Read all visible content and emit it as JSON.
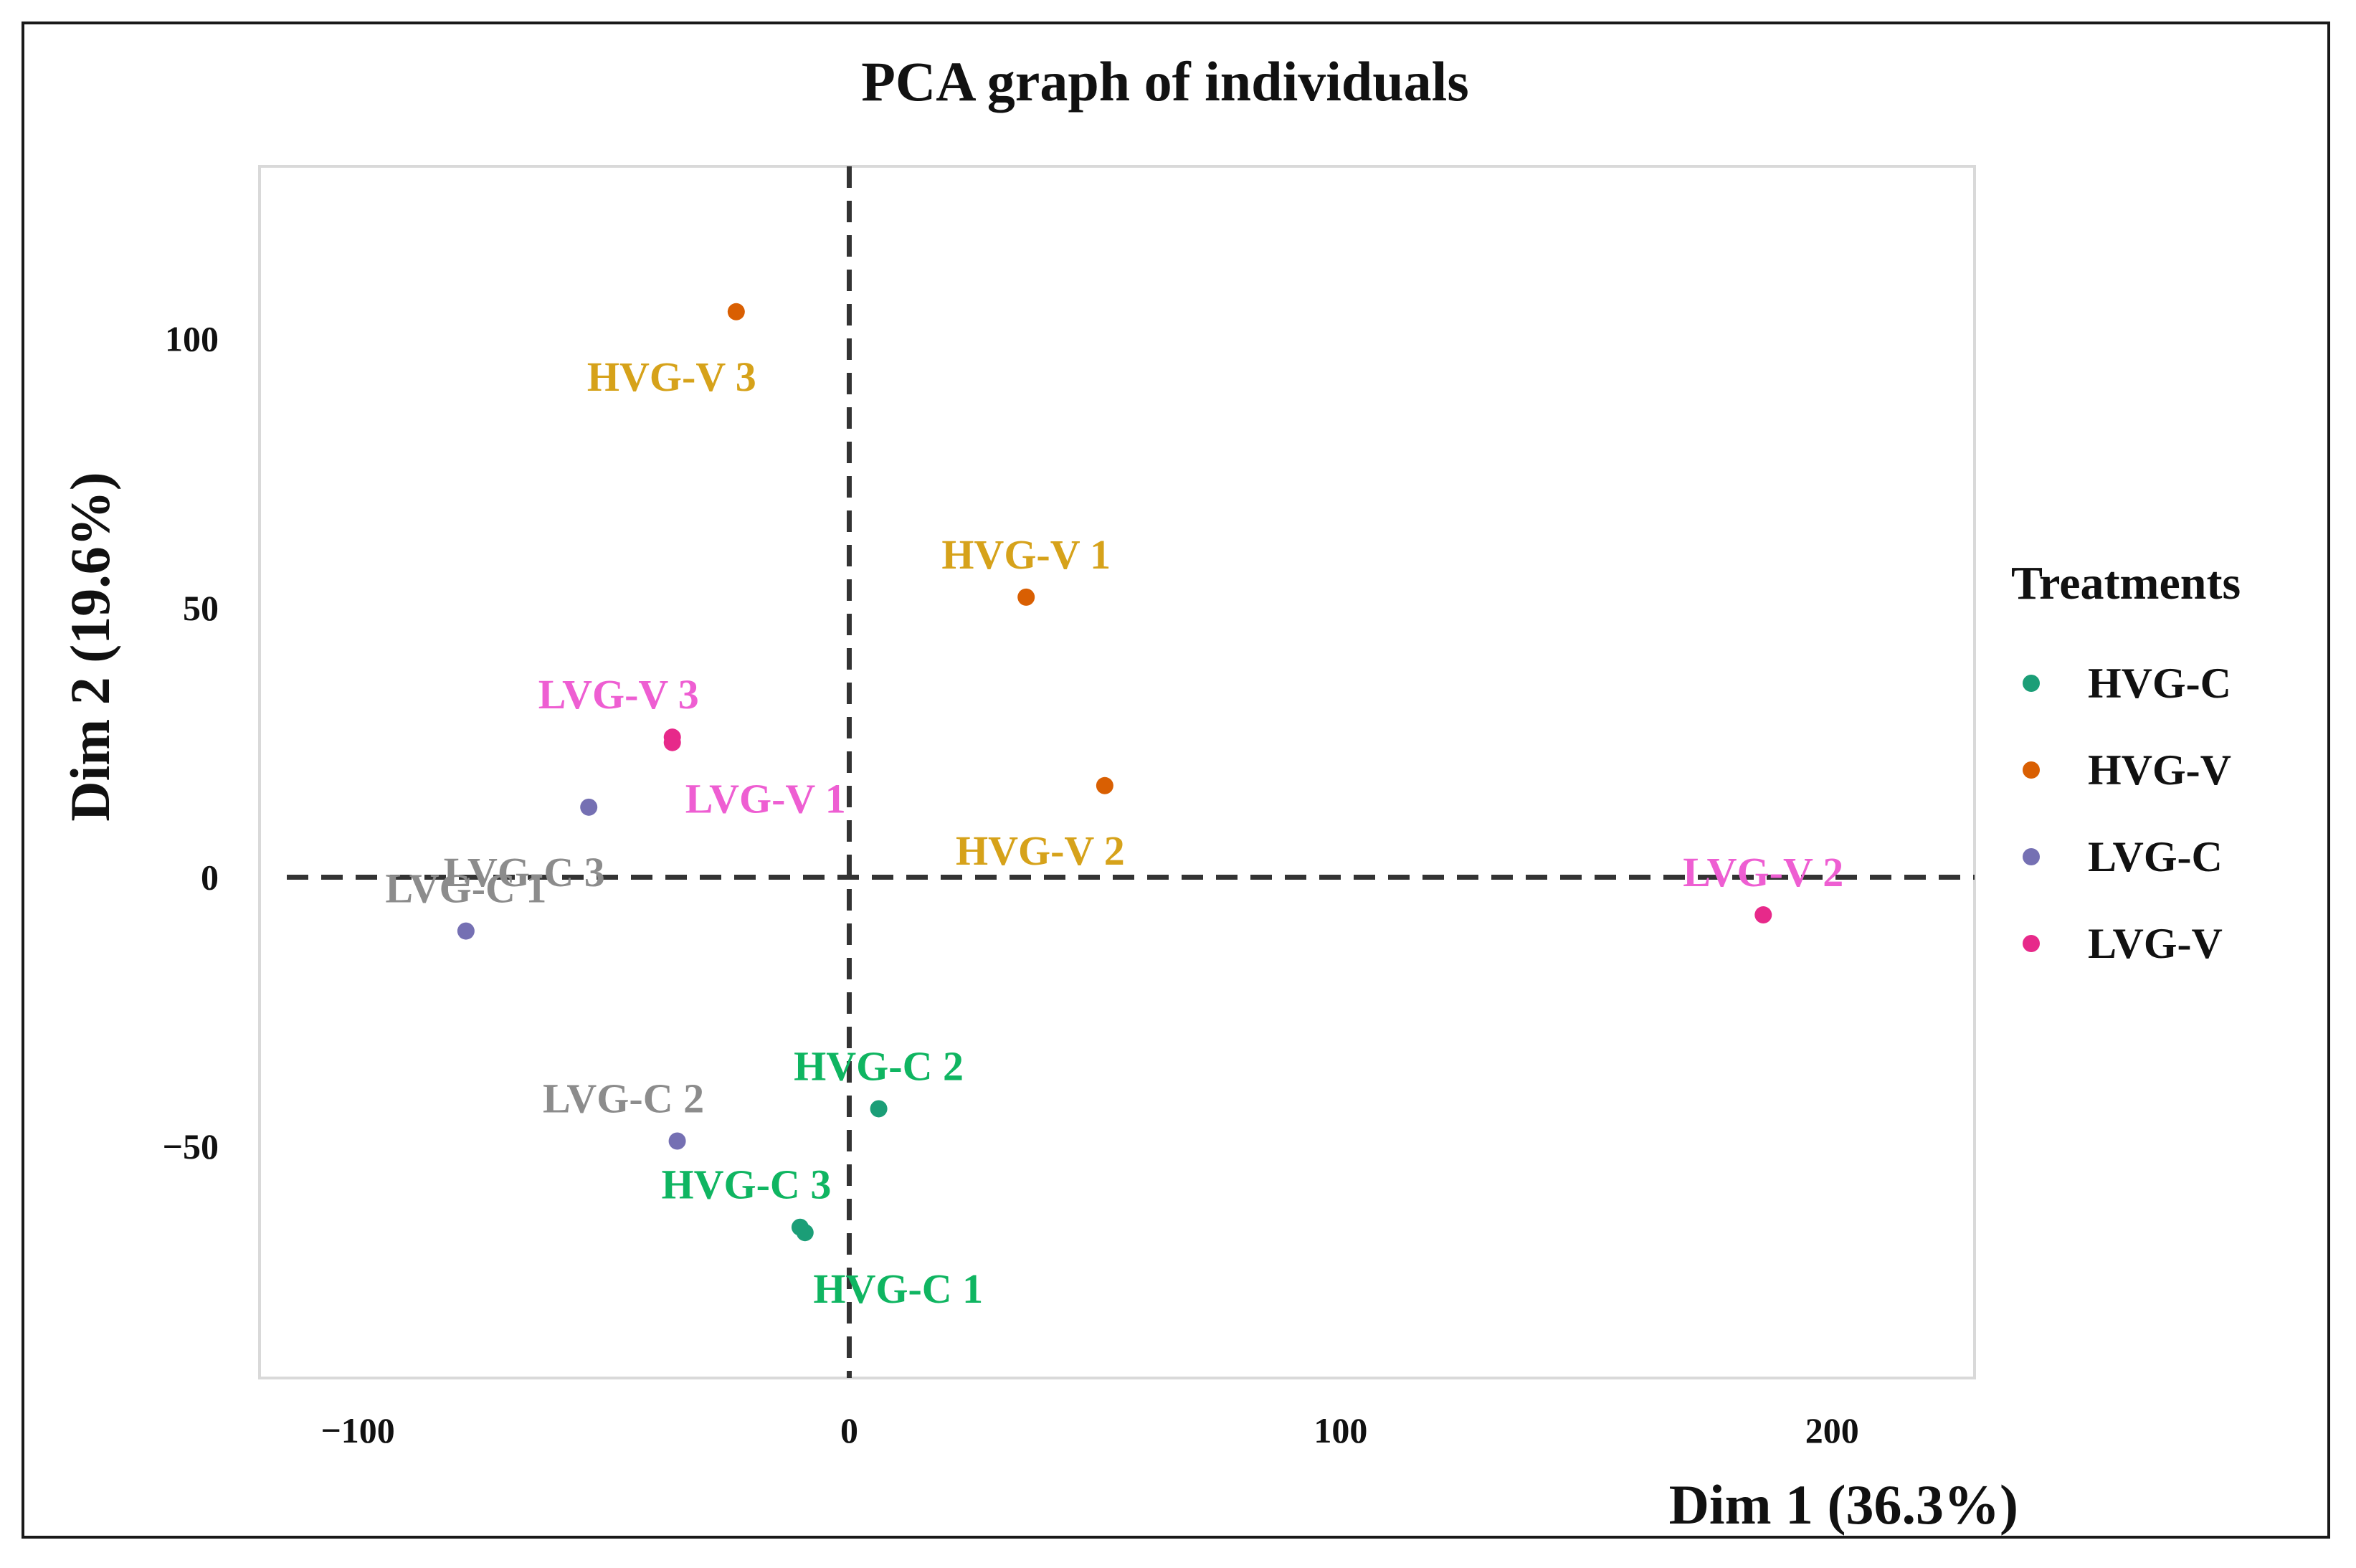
{
  "chart_data": {
    "type": "scatter",
    "title": "PCA graph of individuals",
    "xlabel": "Dim 1 (36.3%)",
    "ylabel": "Dim 2 (19.6%)",
    "xlim": [
      -120,
      229
    ],
    "ylim": [
      -93,
      132
    ],
    "xticks": [
      -100,
      0,
      100,
      200
    ],
    "yticks": [
      100,
      50,
      0,
      -50
    ],
    "xtick_labels": [
      "−100",
      "0",
      "100",
      "200"
    ],
    "ytick_labels": [
      "100",
      "50",
      "0",
      "−50"
    ],
    "reference_lines": {
      "x": 0,
      "y": 0,
      "style": "dashed"
    },
    "legend": {
      "title": "Treatments",
      "position": "right",
      "entries": [
        {
          "name": "HVG-C",
          "color": "#1b9e77"
        },
        {
          "name": "HVG-V",
          "color": "#d95f02"
        },
        {
          "name": "LVG-C",
          "color": "#7570b3"
        },
        {
          "name": "LVG-V",
          "color": "#e7298a"
        }
      ]
    },
    "label_colors": {
      "HVG-C": "#0fb561",
      "HVG-V": "#d6a21a",
      "LVG-C": "#8c8c8c",
      "LVG-V": "#ee5ed2"
    },
    "points": [
      {
        "label": "HVG-V 3",
        "group": "HVG-V",
        "x": -23,
        "y": 105,
        "anchor": "below-left"
      },
      {
        "label": "HVG-V 1",
        "group": "HVG-V",
        "x": 36,
        "y": 52,
        "anchor": "above"
      },
      {
        "label": "HVG-V 2",
        "group": "HVG-V",
        "x": 52,
        "y": 17,
        "anchor": "below-left"
      },
      {
        "label": "LVG-V 3",
        "group": "LVG-V",
        "x": -36,
        "y": 26,
        "anchor": "above-left"
      },
      {
        "label": "LVG-V 1",
        "group": "LVG-V",
        "x": -36,
        "y": 25,
        "anchor": "below-right"
      },
      {
        "label": "LVG-V 2",
        "group": "LVG-V",
        "x": 186,
        "y": -7,
        "anchor": "above"
      },
      {
        "label": "LVG-C 3",
        "group": "LVG-C",
        "x": -53,
        "y": 13,
        "anchor": "below-left"
      },
      {
        "label": "LVG-C 1",
        "group": "LVG-C",
        "x": -78,
        "y": -10,
        "anchor": "above"
      },
      {
        "label": "LVG-C 2",
        "group": "LVG-C",
        "x": -35,
        "y": -49,
        "anchor": "above-left"
      },
      {
        "label": "HVG-C 2",
        "group": "HVG-C",
        "x": 6,
        "y": -43,
        "anchor": "above"
      },
      {
        "label": "HVG-C 3",
        "group": "HVG-C",
        "x": -10,
        "y": -65,
        "anchor": "above-left"
      },
      {
        "label": "HVG-C 1",
        "group": "HVG-C",
        "x": -9,
        "y": -66,
        "anchor": "below-right"
      }
    ]
  }
}
